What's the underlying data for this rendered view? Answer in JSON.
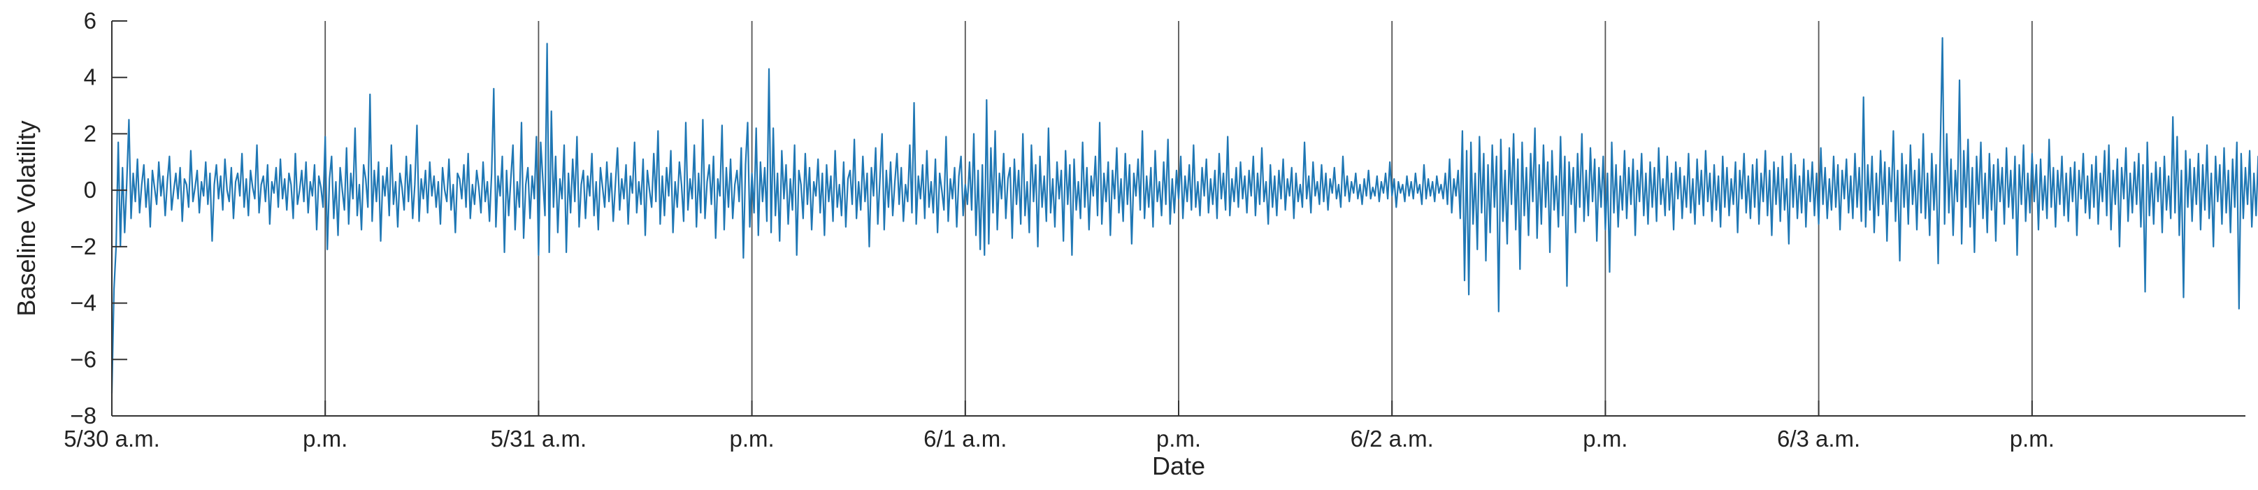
{
  "chart_data": {
    "type": "line",
    "title": "",
    "xlabel": "Date",
    "ylabel": "Baseline Volatility",
    "ylim": [
      -8,
      6
    ],
    "yticks": [
      -8,
      -6,
      -4,
      -2,
      0,
      2,
      4,
      6
    ],
    "yticklabels": [
      "−8",
      "−6",
      "−4",
      "−2",
      "0",
      "2",
      "4",
      "6"
    ],
    "xlim": [
      0,
      10
    ],
    "xticks": [
      0,
      1,
      2,
      3,
      4,
      5,
      6,
      7,
      8,
      9
    ],
    "xticklabels": [
      "5/30 a.m.",
      "p.m.",
      "5/31 a.m.",
      "p.m.",
      "6/1 a.m.",
      "p.m.",
      "6/2 a.m.",
      "p.m.",
      "6/3 a.m.",
      "p.m."
    ],
    "vertical_lines": [
      1,
      2,
      3,
      4,
      5,
      6,
      7,
      8,
      9
    ],
    "grid": false,
    "legend": "none",
    "series_color": "#1f77b4",
    "series": [
      {
        "points_per_session": 100,
        "values": [
          -7.2,
          -3.5,
          -2.0,
          1.7,
          -2.0,
          0.8,
          -1.5,
          0.3,
          2.5,
          -1.0,
          0.6,
          -0.4,
          1.1,
          -0.8,
          0.2,
          0.9,
          -0.6,
          0.4,
          -1.3,
          0.7,
          0.1,
          -0.5,
          1.0,
          -0.2,
          0.5,
          -0.9,
          0.3,
          1.2,
          -0.7,
          0.0,
          0.6,
          -0.3,
          0.8,
          -1.1,
          0.4,
          0.2,
          -0.6,
          1.4,
          -0.4,
          0.1,
          0.7,
          -0.8,
          0.3,
          -0.2,
          1.0,
          -0.5,
          0.6,
          -1.8,
          0.2,
          0.9,
          -0.3,
          0.5,
          -0.7,
          1.1,
          0.0,
          -0.4,
          0.8,
          -1.0,
          0.3,
          0.6,
          -0.2,
          1.3,
          -0.6,
          0.4,
          -0.9,
          0.7,
          0.1,
          -0.3,
          1.6,
          -0.8,
          0.2,
          0.5,
          -0.4,
          0.9,
          -1.2,
          0.3,
          -0.1,
          0.8,
          -0.6,
          1.1,
          -0.3,
          0.4,
          -0.7,
          0.6,
          0.2,
          -1.0,
          1.3,
          -0.5,
          0.0,
          0.7,
          -0.4,
          1.0,
          -0.8,
          0.3,
          -0.2,
          0.9,
          -1.4,
          0.5,
          0.1,
          -0.6,
          1.9,
          -2.1,
          0.4,
          1.2,
          -1.0,
          0.3,
          -1.6,
          0.8,
          0.0,
          -0.7,
          1.5,
          -1.2,
          0.6,
          -0.3,
          2.2,
          -0.9,
          0.2,
          -1.4,
          0.9,
          0.4,
          -0.6,
          3.4,
          -1.1,
          0.7,
          -0.4,
          1.0,
          -1.8,
          0.5,
          -0.2,
          0.8,
          -0.9,
          1.6,
          -0.5,
          0.3,
          -1.3,
          0.6,
          0.1,
          -0.7,
          1.2,
          -0.4,
          0.9,
          -1.0,
          0.2,
          2.3,
          -1.1,
          0.4,
          -0.3,
          0.7,
          -0.8,
          1.0,
          -0.2,
          0.5,
          -0.6,
          0.3,
          -1.2,
          0.8,
          0.0,
          -0.4,
          1.1,
          -0.7,
          0.2,
          -1.5,
          0.6,
          0.4,
          -0.3,
          0.9,
          -0.6,
          1.3,
          -1.0,
          0.2,
          -0.5,
          0.7,
          0.1,
          -0.8,
          1.0,
          -0.4,
          0.3,
          -1.1,
          0.6,
          3.6,
          -1.3,
          0.5,
          -0.2,
          1.2,
          -2.2,
          0.7,
          -0.9,
          0.4,
          1.6,
          -1.4,
          0.3,
          -0.6,
          2.4,
          -1.7,
          0.2,
          0.8,
          -1.0,
          0.5,
          -0.3,
          1.9,
          -2.3,
          1.7,
          0.4,
          -0.9,
          5.2,
          -2.2,
          2.8,
          -0.6,
          1.2,
          -1.5,
          0.4,
          -0.3,
          1.6,
          -2.2,
          0.6,
          -0.8,
          1.1,
          -0.4,
          1.9,
          -1.3,
          0.2,
          0.7,
          -1.0,
          0.5,
          -0.2,
          1.3,
          -0.9,
          0.3,
          -1.4,
          0.8,
          0.1,
          -0.6,
          1.0,
          -0.4,
          0.6,
          -1.1,
          0.2,
          1.5,
          -0.7,
          0.4,
          -0.3,
          0.9,
          -1.2,
          0.5,
          -0.1,
          1.7,
          -0.8,
          0.3,
          -0.5,
          1.1,
          -1.6,
          0.7,
          0.0,
          -0.6,
          1.3,
          -0.4,
          2.1,
          -1.2,
          0.5,
          -0.9,
          0.8,
          -0.2,
          1.4,
          -1.5,
          0.3,
          -0.6,
          1.0,
          0.2,
          -1.1,
          2.4,
          -0.7,
          0.4,
          -0.3,
          1.6,
          -1.3,
          0.6,
          -0.8,
          2.5,
          -1.0,
          0.3,
          0.9,
          -0.5,
          1.2,
          -1.7,
          0.4,
          -0.2,
          2.3,
          -1.4,
          0.8,
          -0.6,
          1.1,
          -1.0,
          0.2,
          0.7,
          -0.4,
          1.5,
          -2.4,
          0.9,
          2.4,
          -1.3,
          0.6,
          -0.8,
          2.2,
          -1.6,
          1.0,
          -0.4,
          0.8,
          -1.1,
          4.3,
          -1.5,
          2.2,
          -0.9,
          0.6,
          -1.8,
          1.4,
          -0.3,
          0.9,
          -1.2,
          0.4,
          -0.7,
          1.6,
          -2.3,
          0.7,
          0.2,
          -1.0,
          1.3,
          -0.5,
          0.8,
          -1.4,
          0.3,
          -0.2,
          1.1,
          -0.8,
          0.6,
          -1.6,
          0.9,
          -0.4,
          0.5,
          -1.1,
          1.4,
          -0.6,
          0.2,
          -0.9,
          1.0,
          -1.3,
          0.4,
          0.7,
          -0.5,
          1.8,
          -1.0,
          0.3,
          -0.7,
          1.2,
          -0.4,
          0.6,
          -2.0,
          0.8,
          -0.2,
          1.5,
          -1.2,
          0.4,
          2.0,
          -1.4,
          0.7,
          -0.6,
          1.0,
          -0.9,
          0.3,
          1.3,
          -0.5,
          0.8,
          -1.1,
          0.2,
          -0.4,
          1.6,
          -0.8,
          3.1,
          -1.2,
          0.5,
          -0.3,
          0.9,
          -1.0,
          1.4,
          -0.6,
          0.3,
          -0.8,
          1.1,
          -1.5,
          0.6,
          0.0,
          -0.7,
          1.9,
          -1.1,
          0.4,
          -0.3,
          0.8,
          -1.3,
          0.5,
          1.2,
          -0.9,
          0.2,
          -0.5,
          1.0,
          -0.7,
          2.0,
          -1.6,
          0.7,
          -2.1,
          0.9,
          -2.3,
          3.2,
          -1.9,
          1.5,
          -0.8,
          2.1,
          -1.4,
          0.6,
          -0.3,
          1.3,
          -1.0,
          0.4,
          0.8,
          -1.7,
          1.1,
          -0.5,
          0.7,
          -1.2,
          2.0,
          -0.9,
          0.3,
          -1.5,
          1.6,
          -0.4,
          0.9,
          -2.0,
          1.2,
          -0.6,
          0.5,
          -1.1,
          2.2,
          -0.8,
          0.4,
          -1.3,
          1.0,
          -0.3,
          0.7,
          -1.8,
          1.4,
          -0.5,
          0.9,
          -2.3,
          1.1,
          -0.7,
          0.3,
          -1.0,
          1.7,
          -0.6,
          0.8,
          -1.4,
          0.5,
          -0.2,
          1.2,
          -0.9,
          2.4,
          -1.2,
          0.6,
          -0.4,
          1.0,
          -1.6,
          0.7,
          -0.3,
          1.5,
          -0.8,
          0.4,
          -1.1,
          1.3,
          -0.5,
          0.9,
          -1.9,
          0.6,
          -0.2,
          1.1,
          -0.7,
          2.1,
          -1.0,
          0.5,
          -0.6,
          0.8,
          -1.3,
          1.4,
          -0.4,
          0.3,
          -0.9,
          1.0,
          -0.5,
          1.8,
          -1.2,
          0.4,
          -0.8,
          0.7,
          -0.3,
          1.2,
          -1.0,
          0.5,
          -0.4,
          0.9,
          -0.7,
          1.6,
          -0.6,
          0.3,
          -0.9,
          0.8,
          -0.2,
          1.1,
          -0.8,
          0.4,
          -0.5,
          0.7,
          -1.0,
          1.3,
          -0.3,
          0.6,
          -0.7,
          1.9,
          -0.9,
          0.4,
          -0.4,
          0.8,
          -0.6,
          1.0,
          -0.3,
          0.5,
          -0.8,
          0.7,
          -0.2,
          1.2,
          -0.9,
          0.6,
          -0.5,
          1.5,
          -0.4,
          0.3,
          -1.2,
          0.9,
          -0.6,
          0.5,
          -0.9,
          0.7,
          -0.3,
          1.1,
          -0.7,
          0.4,
          -0.2,
          0.8,
          -1.0,
          0.6,
          -0.4,
          0.2,
          -0.6,
          1.7,
          -0.3,
          0.5,
          -0.8,
          1.0,
          -0.2,
          0.3,
          -0.5,
          0.9,
          -0.4,
          0.6,
          -0.7,
          0.4,
          -0.1,
          0.8,
          -0.3,
          0.2,
          -0.6,
          1.2,
          -0.2,
          0.5,
          -0.4,
          0.3,
          -0.1,
          0.6,
          -0.3,
          0.2,
          -0.5,
          0.4,
          -0.2,
          0.7,
          -0.3,
          0.1,
          -0.2,
          0.5,
          -0.4,
          0.3,
          -0.1,
          0.6,
          -0.3,
          1.0,
          -0.2,
          0.4,
          -0.6,
          0.3,
          -0.1,
          0.2,
          -0.4,
          0.5,
          -0.2,
          0.3,
          -0.3,
          0.6,
          -0.1,
          0.2,
          -0.5,
          0.9,
          -0.3,
          0.4,
          -0.2,
          0.3,
          -0.4,
          0.5,
          -0.1,
          0.2,
          -0.3,
          0.6,
          -0.5,
          1.1,
          -0.8,
          0.4,
          -0.2,
          0.7,
          -1.0,
          2.1,
          -3.2,
          1.4,
          -3.7,
          1.7,
          -1.2,
          0.6,
          -2.1,
          1.9,
          -0.8,
          1.3,
          -2.5,
          0.9,
          -1.5,
          1.6,
          -0.6,
          1.2,
          -4.3,
          1.8,
          -1.1,
          0.7,
          -1.9,
          1.5,
          -0.5,
          2.0,
          -1.4,
          1.1,
          -2.8,
          1.7,
          -0.9,
          0.8,
          -1.6,
          1.3,
          -0.4,
          2.2,
          -1.7,
          0.9,
          -1.2,
          1.6,
          -0.6,
          1.0,
          -2.2,
          1.4,
          -0.7,
          0.5,
          -1.3,
          1.9,
          -0.9,
          1.2,
          -3.4,
          1.0,
          -0.5,
          0.8,
          -1.5,
          1.3,
          -0.6,
          2.0,
          -1.1,
          0.7,
          -0.9,
          1.5,
          -0.4,
          1.1,
          -1.8,
          0.8,
          -0.6,
          1.2,
          -1.4,
          0.6,
          -2.9,
          1.7,
          -0.8,
          0.9,
          -1.3,
          0.5,
          -0.7,
          1.4,
          -1.0,
          0.8,
          -0.5,
          1.1,
          -1.6,
          0.7,
          -0.4,
          1.3,
          -0.9,
          0.6,
          -1.2,
          1.0,
          -0.6,
          0.8,
          -1.1,
          1.5,
          -0.5,
          0.4,
          -0.9,
          1.2,
          -0.7,
          0.6,
          -1.4,
          1.0,
          -0.3,
          0.8,
          -1.0,
          0.5,
          -0.6,
          1.3,
          -0.8,
          0.4,
          -1.2,
          1.1,
          -0.5,
          0.7,
          -0.9,
          1.4,
          -0.4,
          0.6,
          -1.1,
          0.9,
          -0.7,
          0.5,
          -1.3,
          1.2,
          -0.6,
          0.8,
          -0.9,
          0.4,
          -0.5,
          1.0,
          -1.5,
          0.7,
          -0.3,
          1.3,
          -0.8,
          0.5,
          -1.0,
          0.9,
          -0.6,
          1.1,
          -1.2,
          0.6,
          -0.4,
          1.4,
          -0.9,
          0.7,
          -1.6,
          1.0,
          -0.5,
          0.8,
          -1.1,
          1.2,
          -0.7,
          0.4,
          -1.9,
          1.3,
          -0.6,
          0.9,
          -1.0,
          0.5,
          -0.8,
          1.1,
          -1.3,
          0.7,
          -0.4,
          1.0,
          -0.9,
          0.6,
          -1.2,
          1.5,
          -0.5,
          0.8,
          -1.0,
          0.4,
          -0.7,
          1.2,
          -0.6,
          0.9,
          -1.4,
          0.7,
          -0.3,
          1.1,
          -0.8,
          0.5,
          -1.0,
          1.3,
          -0.6,
          0.8,
          -1.1,
          3.3,
          -1.3,
          0.9,
          -0.7,
          1.2,
          -1.5,
          0.6,
          -0.9,
          1.4,
          -0.5,
          1.0,
          -1.8,
          0.8,
          -0.4,
          2.1,
          -1.1,
          0.7,
          -2.5,
          1.3,
          -0.6,
          0.9,
          -1.2,
          1.6,
          -0.5,
          0.7,
          -1.4,
          1.1,
          -0.8,
          2.0,
          -1.0,
          0.6,
          -1.6,
          1.3,
          -0.7,
          0.9,
          -2.6,
          1.5,
          5.4,
          -1.2,
          2.0,
          -0.8,
          1.1,
          -1.6,
          0.7,
          -0.4,
          3.9,
          -1.9,
          1.4,
          -0.6,
          1.8,
          -1.3,
          0.8,
          -2.2,
          1.2,
          -0.5,
          1.7,
          -1.0,
          0.6,
          -1.5,
          1.3,
          -0.7,
          0.9,
          -1.8,
          1.1,
          -0.4,
          0.8,
          -1.2,
          1.5,
          -0.6,
          0.7,
          -1.0,
          1.2,
          -2.3,
          0.9,
          -0.5,
          1.6,
          -1.1,
          0.6,
          -0.8,
          1.3,
          -0.4,
          0.9,
          -1.4,
          1.1,
          -0.7,
          0.5,
          -1.0,
          1.8,
          -0.6,
          0.8,
          -1.3,
          0.7,
          -0.5,
          1.2,
          -0.9,
          0.6,
          -1.1,
          0.8,
          -0.4,
          1.0,
          -1.6,
          0.7,
          -0.3,
          1.3,
          -0.8,
          0.5,
          -1.0,
          0.9,
          -0.6,
          1.2,
          -1.2,
          0.6,
          -0.4,
          1.4,
          -0.9,
          1.6,
          -1.4,
          0.7,
          -0.5,
          1.1,
          -2.0,
          0.8,
          -0.3,
          1.5,
          -1.1,
          0.6,
          -0.8,
          1.0,
          -0.5,
          1.3,
          -1.3,
          0.9,
          -3.6,
          1.7,
          -0.9,
          0.6,
          -1.2,
          1.0,
          -0.4,
          0.8,
          -1.5,
          1.2,
          -0.7,
          0.5,
          -1.0,
          2.6,
          -0.8,
          1.9,
          -1.6,
          0.7,
          -3.8,
          1.4,
          -0.6,
          1.1,
          -1.1,
          0.8,
          -0.5,
          1.3,
          -1.4,
          0.9,
          -0.7,
          1.6,
          -1.0,
          0.6,
          -2.0,
          1.2,
          -0.4,
          0.9,
          -1.2,
          1.5,
          -0.8,
          0.7,
          -1.5,
          1.1,
          -0.6,
          1.7,
          -4.2,
          1.3,
          -1.0,
          0.8,
          -0.5,
          1.4,
          -1.3,
          0.6,
          -0.9,
          1.2,
          -0.4,
          0.7,
          -1.6,
          1.0,
          -0.6,
          1.5,
          -1.1,
          0.8,
          -0.7,
          1.3,
          -1.0,
          0.5,
          -0.8,
          1.1,
          -1.4,
          2.4,
          -0.9,
          0.7,
          -0.5,
          1.2,
          -1.2,
          0.6,
          -1.7,
          1.0,
          -0.4,
          1.6,
          -0.8,
          0.9,
          -1.3,
          0.5,
          -0.6,
          1.4,
          -1.0,
          0.7,
          -0.7,
          1.1,
          -1.5,
          0.8,
          -0.5,
          1.9,
          -0.9,
          1.3,
          -1.1,
          0.6,
          -0.4,
          1.6,
          -1.3,
          0.9,
          -0.8,
          2.1,
          -1.2,
          0.7,
          -1.5,
          1.5,
          -0.6,
          1.1,
          -0.9,
          0.8,
          -0.3,
          1.4,
          -0.7,
          0.5,
          -1.0,
          1.2,
          0.2,
          1.6,
          0.4,
          1.5
        ]
      }
    ]
  }
}
